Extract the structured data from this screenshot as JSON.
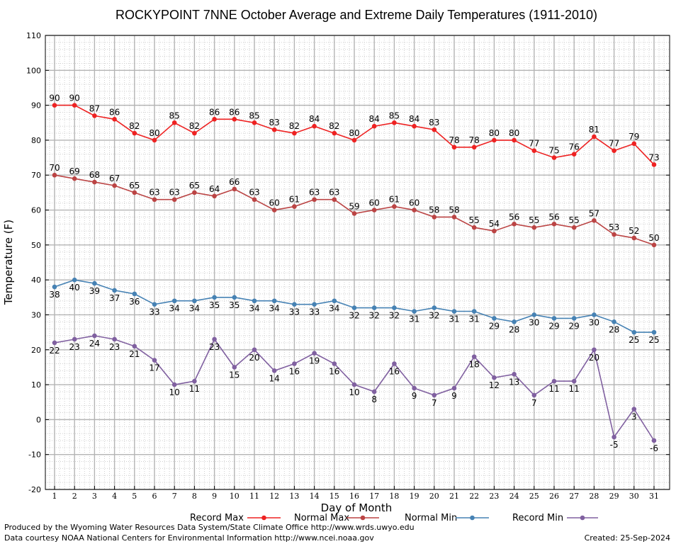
{
  "chart_data": {
    "type": "line",
    "title": "ROCKYPOINT 7NNE October Average and Extreme Daily Temperatures (1911-2010)",
    "xlabel": "Day of Month",
    "ylabel": "Temperature (F)",
    "xlim": [
      1,
      31
    ],
    "ylim": [
      -20,
      110
    ],
    "yticks": [
      -20,
      -10,
      0,
      10,
      20,
      30,
      40,
      50,
      60,
      70,
      80,
      90,
      100,
      110
    ],
    "grid": true,
    "legend": "bottom",
    "x": [
      1,
      2,
      3,
      4,
      5,
      6,
      7,
      8,
      9,
      10,
      11,
      12,
      13,
      14,
      15,
      16,
      17,
      18,
      19,
      20,
      21,
      22,
      23,
      24,
      25,
      26,
      27,
      28,
      29,
      30,
      31
    ],
    "series": [
      {
        "name": "Record Max",
        "color": "#ee2222",
        "label_position": "above",
        "values": [
          90,
          90,
          87,
          86,
          82,
          80,
          85,
          82,
          86,
          86,
          85,
          83,
          82,
          84,
          82,
          80,
          84,
          85,
          84,
          83,
          78,
          78,
          80,
          80,
          77,
          75,
          76,
          81,
          77,
          79,
          73
        ]
      },
      {
        "name": "Normal Max",
        "color": "#bb4444",
        "label_position": "above",
        "values": [
          70,
          69,
          68,
          67,
          65,
          63,
          63,
          65,
          64,
          66,
          63,
          60,
          61,
          63,
          63,
          59,
          60,
          61,
          60,
          58,
          58,
          55,
          54,
          56,
          55,
          56,
          55,
          57,
          53,
          52,
          50
        ]
      },
      {
        "name": "Normal Min",
        "color": "#4682b4",
        "label_position": "below",
        "values": [
          38,
          40,
          39,
          37,
          36,
          33,
          34,
          34,
          35,
          35,
          34,
          34,
          33,
          33,
          34,
          32,
          32,
          32,
          31,
          32,
          31,
          31,
          29,
          28,
          30,
          29,
          29,
          30,
          28,
          25,
          25
        ]
      },
      {
        "name": "Record Min",
        "color": "#8060a0",
        "label_position": "below",
        "values": [
          22,
          23,
          24,
          23,
          21,
          17,
          10,
          11,
          23,
          15,
          20,
          14,
          16,
          19,
          16,
          10,
          8,
          16,
          9,
          7,
          9,
          18,
          12,
          13,
          7,
          11,
          11,
          20,
          -5,
          3,
          -6
        ]
      }
    ]
  },
  "footer": {
    "produced_by": "Produced by the Wyoming Water Resources Data System/State Climate Office http://www.wrds.uwyo.edu",
    "courtesy": "Data courtesy NOAA National Centers for Environmental Information http://www.ncei.noaa.gov",
    "created": "Created:  25-Sep-2024"
  }
}
